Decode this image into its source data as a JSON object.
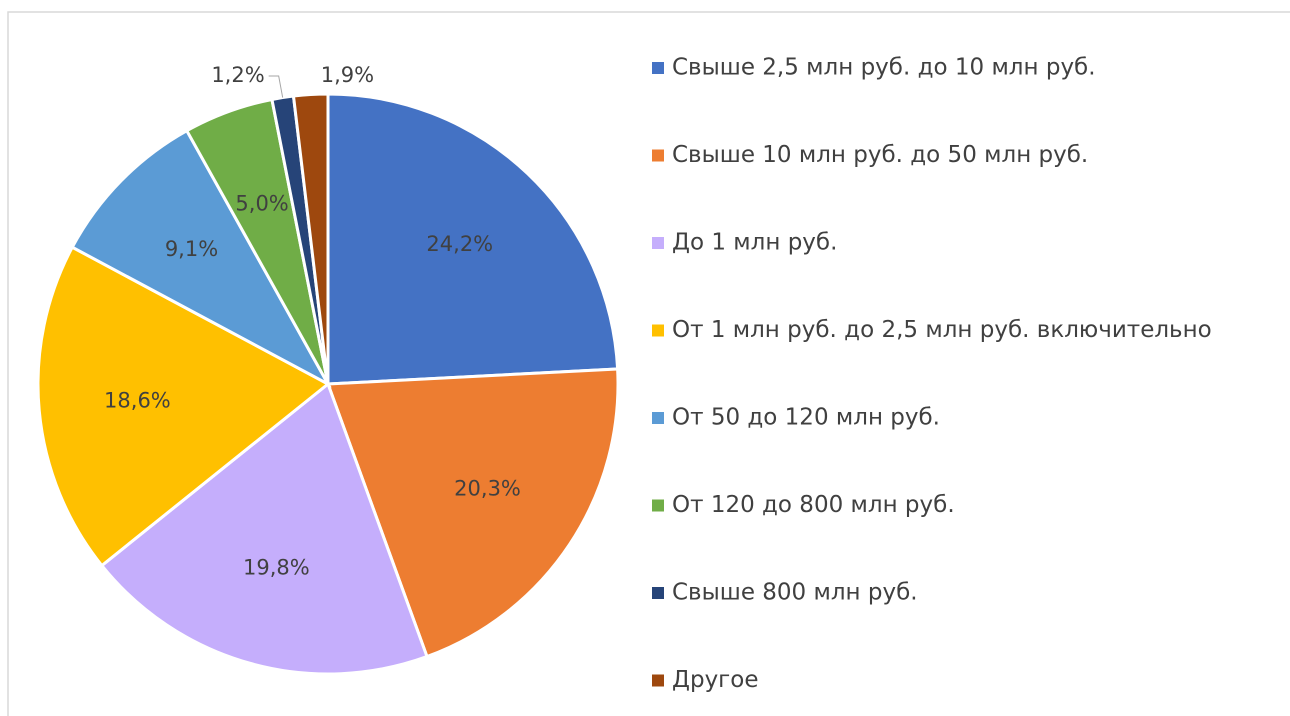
{
  "chart_data": {
    "type": "pie",
    "categories": [
      "Свыше 2,5 млн руб. до 10 млн руб.",
      "Свыше 10 млн руб. до 50 млн руб.",
      "До 1 млн руб.",
      "От 1 млн руб. до 2,5 млн руб. включительно",
      "От 50 до 120 млн руб.",
      "От 120 до 800 млн руб.",
      "Свыше 800 млн руб.",
      "Другое"
    ],
    "values": [
      24.2,
      20.3,
      19.8,
      18.6,
      9.1,
      5.0,
      1.2,
      1.9
    ],
    "value_labels": [
      "24,2%",
      "20,3%",
      "19,8%",
      "18,6%",
      "9,1%",
      "5,0%",
      "1,2%",
      "1,9%"
    ],
    "colors": [
      "#4472c4",
      "#ed7d31",
      "#c5aefc",
      "#ffc000",
      "#5b9bd5",
      "#70ad47",
      "#264478",
      "#9e480e"
    ],
    "legend": "right"
  }
}
